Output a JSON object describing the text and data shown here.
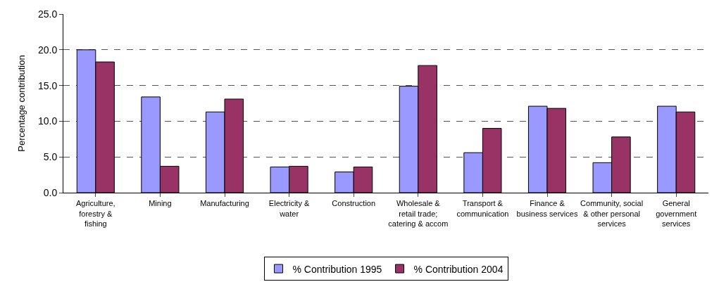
{
  "chart_data": {
    "type": "bar",
    "ylabel": "Percentage contribution",
    "categories": [
      "Agriculture, forestry & fishing",
      "Mining",
      "Manufacturing",
      "Electricity & water",
      "Construction",
      "Wholesale & retail trade; catering & accom",
      "Transport & communication",
      "Finance & business services",
      "Community, social & other personal services",
      "General government services"
    ],
    "series": [
      {
        "name": "% Contribution 1995",
        "color": "#9999ff",
        "values": [
          20.0,
          13.4,
          11.3,
          3.6,
          2.9,
          14.9,
          5.6,
          12.1,
          4.2,
          12.1
        ]
      },
      {
        "name": "% Contribution 2004",
        "color": "#993366",
        "values": [
          18.3,
          3.7,
          13.1,
          3.7,
          3.6,
          17.8,
          9.0,
          11.8,
          7.8,
          11.3
        ]
      }
    ],
    "ylim": [
      0,
      25
    ],
    "yticks": [
      {
        "value": 0,
        "label": "0.0"
      },
      {
        "value": 5,
        "label": "5.0"
      },
      {
        "value": 10,
        "label": "10.0"
      },
      {
        "value": 15,
        "label": "15.0"
      },
      {
        "value": 20,
        "label": "20.0"
      },
      {
        "value": 25,
        "label": "25.0"
      }
    ],
    "grid": "y",
    "legend": "bottom"
  }
}
